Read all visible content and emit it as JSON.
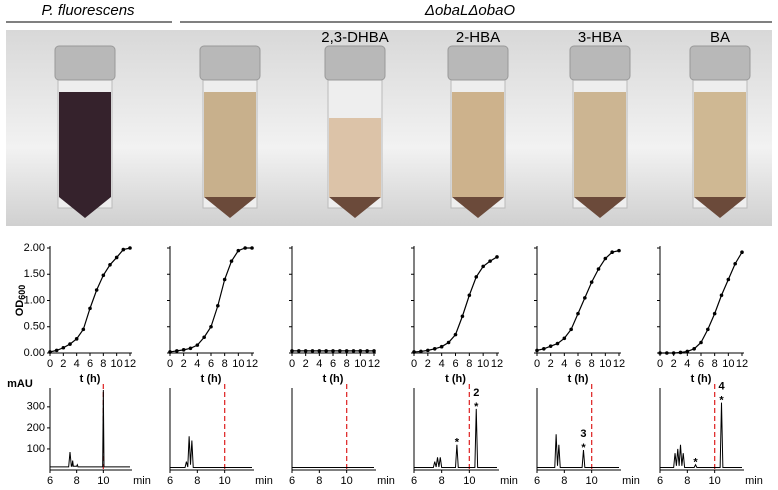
{
  "labels": {
    "strain_wt": "P. fluorescens",
    "strain_mutant": "ΔobaLΔobaO",
    "conditions": [
      "2,3-DHBA",
      "2-HBA",
      "3-HBA",
      "BA"
    ]
  },
  "chart_data": [
    {
      "type": "line",
      "markers": true,
      "ylabel": "OD",
      "ylabel_sub": "600",
      "xlabel": "t (h)",
      "xlim": [
        0,
        12
      ],
      "xticks": [
        0,
        2,
        4,
        6,
        8,
        10,
        12
      ],
      "ylim": [
        0,
        2
      ],
      "yticks": [
        {
          "value": 0,
          "label": "0.00"
        },
        {
          "value": 0.5,
          "label": "0.50"
        },
        {
          "value": 1,
          "label": "1.00"
        },
        {
          "value": 1.5,
          "label": "1.50"
        },
        {
          "value": 2,
          "label": "2.00"
        }
      ],
      "show_ytick_labels": true,
      "color": "#000000",
      "x": [
        0,
        1,
        2,
        3,
        4,
        5,
        6,
        7,
        8,
        9,
        10,
        11,
        12
      ],
      "values": [
        0.02,
        0.05,
        0.1,
        0.17,
        0.27,
        0.45,
        0.85,
        1.2,
        1.48,
        1.68,
        1.82,
        1.97,
        2.0
      ]
    },
    {
      "type": "line",
      "markers": true,
      "xlabel": "t (h)",
      "xlim": [
        0,
        12
      ],
      "xticks": [
        0,
        2,
        4,
        6,
        8,
        10,
        12
      ],
      "ylim": [
        0,
        2
      ],
      "yticks": [
        0,
        0.5,
        1,
        1.5,
        2
      ],
      "show_ytick_labels": false,
      "color": "#000000",
      "x": [
        0,
        1,
        2,
        3,
        4,
        5,
        6,
        7,
        8,
        9,
        10,
        11,
        12
      ],
      "values": [
        0.02,
        0.04,
        0.06,
        0.09,
        0.15,
        0.3,
        0.5,
        0.9,
        1.4,
        1.75,
        1.95,
        2.0,
        2.0
      ]
    },
    {
      "type": "line",
      "markers": true,
      "xlabel": "t (h)",
      "xlim": [
        0,
        12
      ],
      "xticks": [
        0,
        2,
        4,
        6,
        8,
        10,
        12
      ],
      "ylim": [
        0,
        2
      ],
      "yticks": [
        0,
        0.5,
        1,
        1.5,
        2
      ],
      "show_ytick_labels": false,
      "color": "#000000",
      "x": [
        0,
        1,
        2,
        3,
        4,
        5,
        6,
        7,
        8,
        9,
        10,
        11,
        12
      ],
      "values": [
        0.04,
        0.04,
        0.04,
        0.04,
        0.04,
        0.04,
        0.04,
        0.04,
        0.04,
        0.04,
        0.04,
        0.04,
        0.04
      ]
    },
    {
      "type": "line",
      "markers": true,
      "xlabel": "t (h)",
      "xlim": [
        0,
        12
      ],
      "xticks": [
        0,
        2,
        4,
        6,
        8,
        10,
        12
      ],
      "ylim": [
        0,
        2
      ],
      "yticks": [
        0,
        0.5,
        1,
        1.5,
        2
      ],
      "show_ytick_labels": false,
      "color": "#000000",
      "x": [
        0,
        1,
        2,
        3,
        4,
        5,
        6,
        7,
        8,
        9,
        10,
        11,
        12
      ],
      "values": [
        0.02,
        0.03,
        0.05,
        0.08,
        0.12,
        0.2,
        0.35,
        0.7,
        1.1,
        1.45,
        1.65,
        1.75,
        1.83
      ]
    },
    {
      "type": "line",
      "markers": true,
      "xlabel": "t (h)",
      "xlim": [
        0,
        12
      ],
      "xticks": [
        0,
        2,
        4,
        6,
        8,
        10,
        12
      ],
      "ylim": [
        0,
        2
      ],
      "yticks": [
        0,
        0.5,
        1,
        1.5,
        2
      ],
      "show_ytick_labels": false,
      "color": "#000000",
      "x": [
        0,
        1,
        2,
        3,
        4,
        5,
        6,
        7,
        8,
        9,
        10,
        11,
        12
      ],
      "values": [
        0.05,
        0.08,
        0.13,
        0.18,
        0.28,
        0.45,
        0.75,
        1.05,
        1.35,
        1.6,
        1.8,
        1.92,
        1.95
      ]
    },
    {
      "type": "line",
      "markers": true,
      "xlabel": "t (h)",
      "xlim": [
        0,
        12
      ],
      "xticks": [
        0,
        2,
        4,
        6,
        8,
        10,
        12
      ],
      "ylim": [
        0,
        2
      ],
      "yticks": [
        0,
        0.5,
        1,
        1.5,
        2
      ],
      "show_ytick_labels": false,
      "color": "#000000",
      "x": [
        0,
        1,
        2,
        3,
        4,
        5,
        6,
        7,
        8,
        9,
        10,
        11,
        12
      ],
      "values": [
        0,
        0,
        0,
        0.01,
        0.03,
        0.08,
        0.2,
        0.45,
        0.75,
        1.1,
        1.4,
        1.7,
        1.92
      ]
    },
    {
      "type": "line",
      "markers": false,
      "ylabel": "mAU",
      "xlabel": "min",
      "xlim": [
        6,
        12
      ],
      "xticks": [
        6,
        8,
        10
      ],
      "ylim": [
        0,
        380
      ],
      "yticks": [
        100,
        200,
        300
      ],
      "show_ytick_labels": true,
      "color": "#000000",
      "reference_x": 10,
      "reference_color": "#e03030",
      "x": [
        6,
        7.4,
        7.5,
        7.6,
        7.65,
        7.7,
        7.75,
        8.0,
        8.05,
        8.1,
        9.95,
        10,
        10.05,
        12
      ],
      "values": [
        15,
        15,
        85,
        18,
        18,
        45,
        18,
        18,
        25,
        15,
        15,
        380,
        15,
        15
      ]
    },
    {
      "type": "line",
      "markers": false,
      "xlabel": "min",
      "xlim": [
        6,
        12
      ],
      "xticks": [
        6,
        8,
        10
      ],
      "ylim": [
        0,
        380
      ],
      "color": "#000000",
      "reference_x": 10,
      "reference_color": "#e03030",
      "x": [
        6,
        7.1,
        7.2,
        7.3,
        7.4,
        7.5,
        7.6,
        7.7,
        12
      ],
      "values": [
        12,
        12,
        40,
        14,
        160,
        25,
        140,
        12,
        12
      ]
    },
    {
      "type": "line",
      "markers": false,
      "xlabel": "min",
      "xlim": [
        6,
        12
      ],
      "xticks": [
        6,
        8,
        10
      ],
      "ylim": [
        0,
        380
      ],
      "color": "#000000",
      "reference_x": 10,
      "reference_color": "#e03030",
      "x": [
        6,
        12
      ],
      "values": [
        12,
        12
      ]
    },
    {
      "type": "line",
      "markers": false,
      "xlabel": "min",
      "xlim": [
        6,
        12
      ],
      "xticks": [
        6,
        8,
        10
      ],
      "ylim": [
        0,
        380
      ],
      "color": "#000000",
      "reference_x": 10,
      "reference_color": "#e03030",
      "x": [
        6,
        7.4,
        7.5,
        7.6,
        7.7,
        7.8,
        7.9,
        8.0,
        9.0,
        9.1,
        9.2,
        10.4,
        10.5,
        10.6,
        12
      ],
      "values": [
        12,
        12,
        40,
        14,
        60,
        14,
        60,
        12,
        12,
        120,
        12,
        12,
        290,
        12,
        12
      ],
      "annotations": [
        {
          "x": 9.1,
          "marker": "*",
          "color": "#33cc55"
        },
        {
          "x": 10.5,
          "marker": "*",
          "color": "#2b8fd8",
          "label": "2"
        }
      ]
    },
    {
      "type": "line",
      "markers": false,
      "xlabel": "min",
      "xlim": [
        6,
        12
      ],
      "xticks": [
        6,
        8,
        10
      ],
      "ylim": [
        0,
        380
      ],
      "color": "#000000",
      "reference_x": 10,
      "reference_color": "#e03030",
      "x": [
        6,
        7.3,
        7.4,
        7.5,
        7.6,
        7.7,
        9.3,
        9.4,
        9.5,
        12
      ],
      "values": [
        12,
        12,
        170,
        20,
        120,
        12,
        12,
        95,
        12,
        12
      ],
      "annotations": [
        {
          "x": 9.4,
          "marker": "*",
          "color": "#2b8fd8",
          "label": "3"
        }
      ]
    },
    {
      "type": "line",
      "markers": false,
      "xlabel": "min",
      "xlim": [
        6,
        12
      ],
      "xticks": [
        6,
        8,
        10
      ],
      "ylim": [
        0,
        380
      ],
      "color": "#000000",
      "reference_x": 10,
      "reference_color": "#e03030",
      "x": [
        6,
        7.0,
        7.1,
        7.2,
        7.3,
        7.4,
        7.5,
        7.6,
        7.7,
        7.8,
        8.5,
        8.6,
        8.7,
        10.4,
        10.5,
        10.6,
        12
      ],
      "values": [
        12,
        12,
        80,
        20,
        100,
        20,
        120,
        20,
        80,
        12,
        12,
        25,
        12,
        12,
        320,
        12,
        12
      ],
      "annotations": [
        {
          "x": 8.6,
          "marker": "*",
          "color": "#33cc55"
        },
        {
          "x": 10.5,
          "marker": "*",
          "color": "#2b8fd8",
          "label": "4"
        }
      ]
    }
  ]
}
